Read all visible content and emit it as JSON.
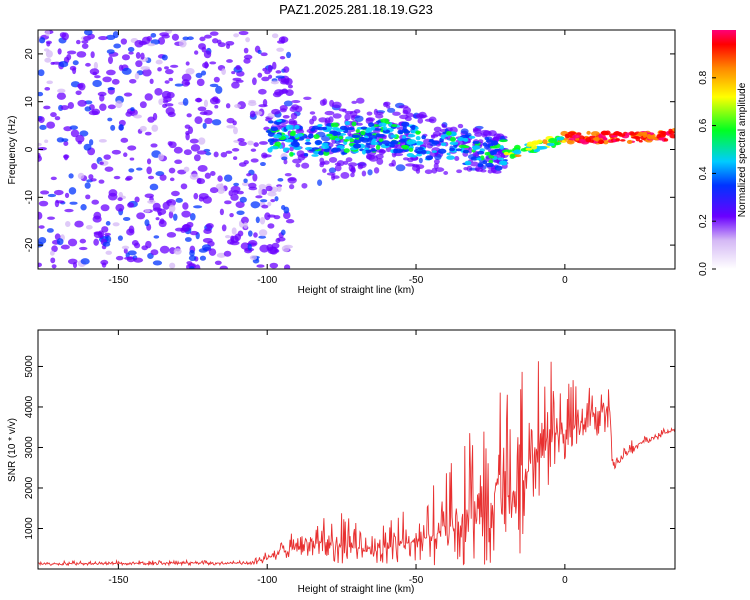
{
  "title": "PAZ1.2025.281.18.19.G23",
  "charts": [
    {
      "type": "heatmap",
      "xlabel": "Height of straight line (km)",
      "ylabel": "Frequency (Hz)",
      "xlim": [
        -177,
        37
      ],
      "ylim": [
        -25,
        25
      ],
      "xticks": [
        -150,
        -100,
        -50,
        0
      ],
      "yticks": [
        20,
        10,
        0,
        -10,
        -20
      ],
      "colorbar": {
        "label": "Normalized spectral amplitude",
        "range": [
          0,
          1
        ],
        "ticks": [
          0.0,
          0.2,
          0.4,
          0.6,
          0.8
        ]
      },
      "ridge": [
        {
          "x": -95,
          "f": 1.5
        },
        {
          "x": -80,
          "f": 2
        },
        {
          "x": -60,
          "f": 3
        },
        {
          "x": -45,
          "f": 1
        },
        {
          "x": -30,
          "f": 0
        },
        {
          "x": -20,
          "f": -1
        },
        {
          "x": -10,
          "f": 0.5
        },
        {
          "x": 0,
          "f": 2.5
        },
        {
          "x": 20,
          "f": 2.5
        },
        {
          "x": 37,
          "f": 3
        }
      ]
    },
    {
      "type": "line",
      "xlabel": "Height of straight line (km)",
      "ylabel": "SNR (10 * v/v)",
      "xlim": [
        -177,
        37
      ],
      "ylim": [
        0,
        5900
      ],
      "xticks": [
        -150,
        -100,
        -50,
        0
      ],
      "yticks": [
        1000,
        2000,
        3000,
        4000,
        5000
      ],
      "envelope": [
        {
          "x": -177,
          "base": 130,
          "amp": 60
        },
        {
          "x": -105,
          "base": 150,
          "amp": 80
        },
        {
          "x": -95,
          "base": 400,
          "amp": 300
        },
        {
          "x": -85,
          "base": 700,
          "amp": 600
        },
        {
          "x": -75,
          "base": 600,
          "amp": 800
        },
        {
          "x": -65,
          "base": 400,
          "amp": 500
        },
        {
          "x": -55,
          "base": 600,
          "amp": 800
        },
        {
          "x": -45,
          "base": 800,
          "amp": 1200
        },
        {
          "x": -35,
          "base": 1200,
          "amp": 1800
        },
        {
          "x": -25,
          "base": 1500,
          "amp": 2800
        },
        {
          "x": -15,
          "base": 2000,
          "amp": 3000
        },
        {
          "x": -8,
          "base": 3200,
          "amp": 2500
        },
        {
          "x": 0,
          "base": 3400,
          "amp": 1200
        },
        {
          "x": 8,
          "base": 3800,
          "amp": 1000
        },
        {
          "x": 15,
          "base": 4000,
          "amp": 1000
        },
        {
          "x": 16,
          "base": 2600,
          "amp": 300
        },
        {
          "x": 25,
          "base": 3100,
          "amp": 200
        },
        {
          "x": 37,
          "base": 3450,
          "amp": 100
        }
      ]
    }
  ],
  "colors": {
    "line": "#e83030",
    "frame": "#000000"
  }
}
